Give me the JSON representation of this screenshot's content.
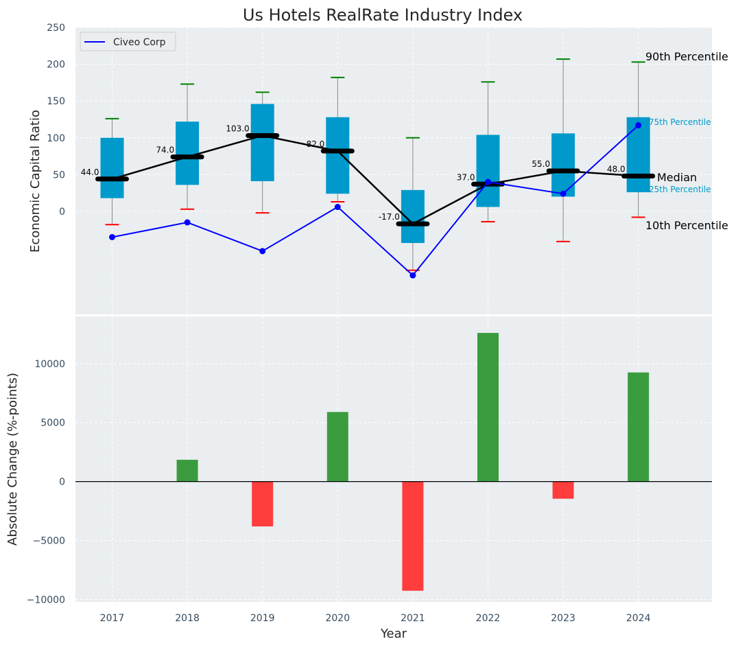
{
  "chart_data": [
    {
      "type": "box",
      "title": "Us Hotels RealRate Industry Index",
      "ylabel": "Economic Capital Ratio",
      "ylim": [
        -140,
        250
      ],
      "yticks": [
        0,
        50,
        100,
        150,
        200,
        250
      ],
      "grid": true,
      "years": [
        "2017",
        "2018",
        "2019",
        "2020",
        "2021",
        "2022",
        "2023",
        "2024"
      ],
      "p10": [
        -18,
        3,
        -2,
        13,
        -80,
        -14,
        -41,
        -8
      ],
      "p25": [
        18,
        36,
        41,
        24,
        -43,
        6,
        20,
        26
      ],
      "median": [
        44,
        74,
        103,
        82,
        -17,
        37,
        55,
        48
      ],
      "median_labels": [
        "44.0",
        "74.0",
        "103.0",
        "82.0",
        "-17.0",
        "37.0",
        "55.0",
        "48.0"
      ],
      "p75": [
        100,
        122,
        146,
        128,
        29,
        104,
        106,
        128
      ],
      "p90": [
        126,
        173,
        162,
        182,
        100,
        176,
        207,
        203
      ],
      "box_color": "#0099cc",
      "median_line_color": "#000000",
      "whisker_top_color": "#008000",
      "whisker_bottom_color": "#ff0000",
      "series": [
        {
          "name": "Civeo Corp",
          "color": "#0000ff",
          "values": [
            -35,
            -15,
            -54,
            6,
            -87,
            40,
            24,
            117
          ]
        }
      ],
      "legend": {
        "label": "Civeo Corp",
        "position": "top-left"
      },
      "percentile_labels": {
        "p90": "90th Percentile",
        "p75": "75th Percentile",
        "median": "Median",
        "p25": "25th Percentile",
        "p10": "10th Percentile"
      }
    },
    {
      "type": "bar",
      "ylabel": "Absolute Change (%-points)",
      "xlabel": "Year",
      "ylim": [
        -10200,
        14000
      ],
      "yticks": [
        -10000,
        -5000,
        0,
        5000,
        10000
      ],
      "ytick_labels": [
        "−10000",
        "−5000",
        "0",
        "5000",
        "10000"
      ],
      "categories": [
        "2017",
        "2018",
        "2019",
        "2020",
        "2021",
        "2022",
        "2023",
        "2024"
      ],
      "values": [
        0,
        1850,
        -3800,
        5900,
        -9250,
        12600,
        -1450,
        9250
      ],
      "positive_color": "#3a9c3e",
      "negative_color": "#ff3d3d",
      "grid": true
    }
  ]
}
